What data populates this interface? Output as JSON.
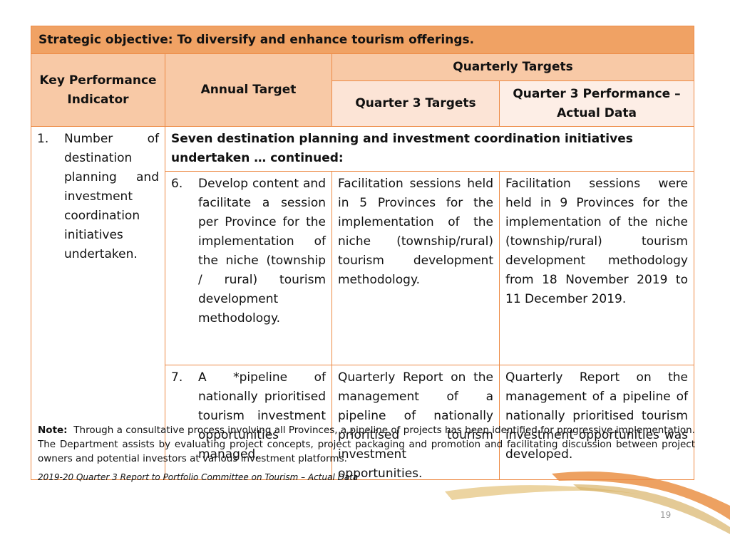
{
  "header": {
    "title": "Strategic objective: To diversify and enhance tourism offerings."
  },
  "table": {
    "columns": {
      "kpi": "Key Performance Indicator",
      "annual": "Annual Target",
      "quarterly": "Quarterly Targets",
      "q3_targets": "Quarter 3 Targets",
      "q3_actual": "Quarter 3 Performance – Actual Data"
    },
    "indicator": {
      "number": "1.",
      "text": "Number of destination planning and investment coordination initiatives undertaken."
    },
    "group_heading": "Seven destination planning and investment coordination initiatives undertaken … continued:",
    "rows": [
      {
        "number": "6.",
        "annual": "Develop content and facilitate a session per Province for the implementation of the niche (township / rural) tourism development methodology.",
        "q3_targets": "Facilitation sessions held in 5 Provinces for the implementation of the niche (township/rural) tourism development methodology.",
        "q3_actual": "Facilitation sessions were held in 9 Provinces for the implementation of the niche (township/rural) tourism development methodology from 18 November 2019 to 11 December 2019."
      },
      {
        "number": "7.",
        "annual": "A *pipeline of nationally prioritised tourism investment opportunities managed.",
        "q3_targets": "Quarterly Report on the management of a pipeline of nationally prioritised tourism investment opportunities.",
        "q3_actual": "Quarterly Report on the management of a pipeline of nationally prioritised tourism investment opportunities was developed."
      }
    ]
  },
  "note": {
    "label": "Note:",
    "text": "Through a consultative process involving all Provinces, a pipeline of projects has been identified for progressive implementation.  The Department assists by evaluating project concepts, project packaging and promotion and facilitating discussion between project owners and potential investors at various investment platforms."
  },
  "source": "2019-20 Quarter 3 Report to Portfolio Committee on Tourism  – Actual Data",
  "page_number": "19"
}
